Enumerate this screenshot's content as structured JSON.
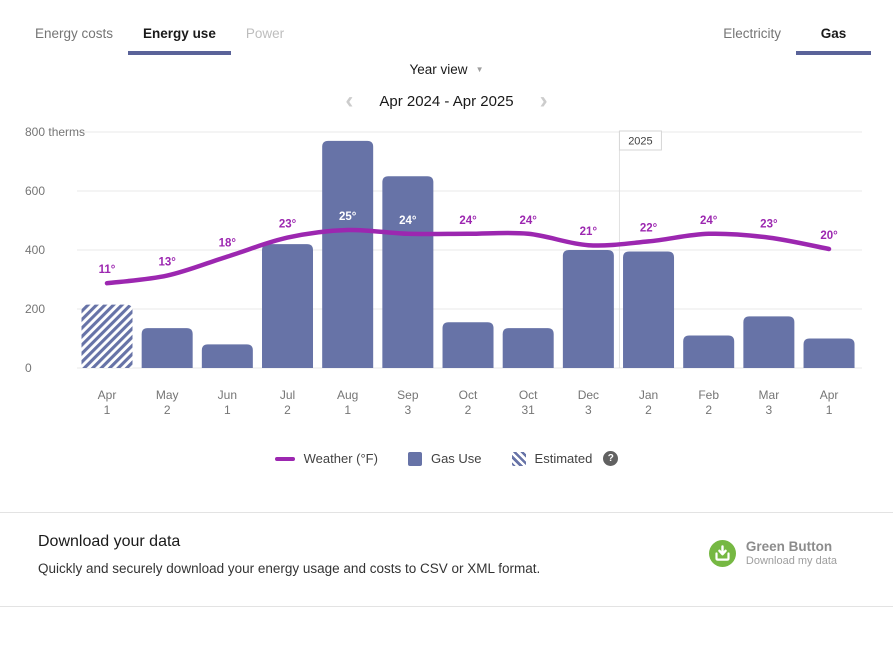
{
  "header": {
    "left_tabs": [
      {
        "label": "Energy costs",
        "state": "normal"
      },
      {
        "label": "Energy use",
        "state": "active"
      },
      {
        "label": "Power",
        "state": "disabled"
      }
    ],
    "right_tabs": [
      {
        "label": "Electricity",
        "state": "normal"
      },
      {
        "label": "Gas",
        "state": "active"
      }
    ]
  },
  "controls": {
    "view_selector": "Year view",
    "dropdown_icon": "▼",
    "prev_icon": "‹",
    "next_icon": "›",
    "date_range": "Apr 2024 - Apr 2025"
  },
  "chart_data": {
    "type": "bar",
    "title": "",
    "unit": "therms",
    "ylim": [
      0,
      800
    ],
    "yticks": [
      0,
      200,
      400,
      600,
      800
    ],
    "ytick_labels": [
      "0",
      "200",
      "400",
      "600",
      "800 therms"
    ],
    "grid": true,
    "legend_position": "bottom",
    "categories": [
      [
        "Apr",
        "1"
      ],
      [
        "May",
        "2"
      ],
      [
        "Jun",
        "1"
      ],
      [
        "Jul",
        "2"
      ],
      [
        "Aug",
        "1"
      ],
      [
        "Sep",
        "3"
      ],
      [
        "Oct",
        "2"
      ],
      [
        "Oct",
        "31"
      ],
      [
        "Dec",
        "3"
      ],
      [
        "Jan",
        "2"
      ],
      [
        "Feb",
        "2"
      ],
      [
        "Mar",
        "3"
      ],
      [
        "Apr",
        "1"
      ]
    ],
    "series": [
      {
        "name": "Gas Use",
        "type": "bar",
        "unit": "therms",
        "values": [
          215,
          135,
          80,
          420,
          770,
          650,
          155,
          135,
          400,
          395,
          110,
          175,
          100
        ],
        "estimated_indices": [
          0
        ]
      },
      {
        "name": "Weather (°F)",
        "type": "line",
        "unit": "°F",
        "values": [
          11,
          13,
          18,
          23,
          25,
          24,
          24,
          24,
          21,
          22,
          24,
          23,
          20
        ]
      }
    ],
    "year_marker": {
      "label": "2025",
      "between_indices": [
        8,
        9
      ]
    },
    "colors": {
      "bar": "#6773A7",
      "line": "#9C27B0",
      "grid": "#E8E8E8",
      "axis_text": "#757575",
      "temp_label_on_bar": "#FFFFFF"
    }
  },
  "legend": {
    "items": [
      {
        "label": "Weather (°F)",
        "swatch": "line"
      },
      {
        "label": "Gas Use",
        "swatch": "bar"
      },
      {
        "label": "Estimated",
        "swatch": "hatch"
      }
    ],
    "help_icon": "?"
  },
  "download": {
    "title": "Download your data",
    "description": "Quickly and securely download your energy usage and costs to CSV or XML format.",
    "brand": "Green Button",
    "brand_subtitle": "Download my data",
    "brand_color": "#76B843"
  }
}
